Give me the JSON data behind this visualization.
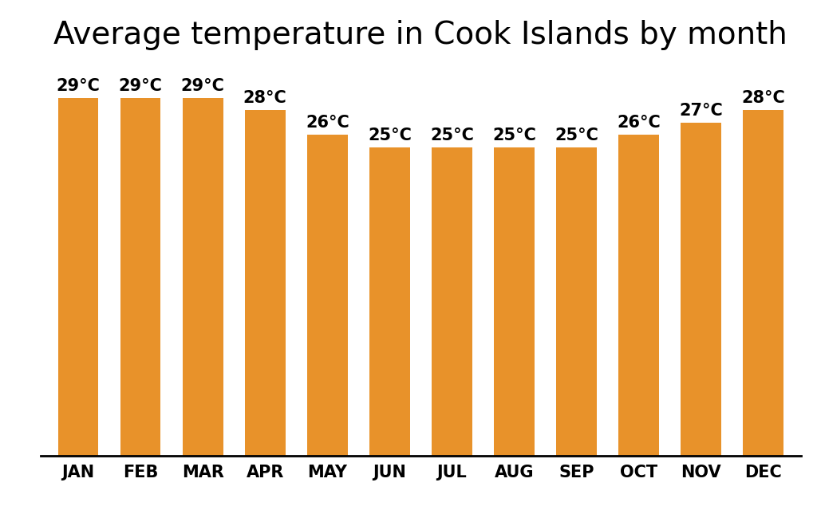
{
  "title": "Average temperature in Cook Islands by month",
  "months": [
    "JAN",
    "FEB",
    "MAR",
    "APR",
    "MAY",
    "JUN",
    "JUL",
    "AUG",
    "SEP",
    "OCT",
    "NOV",
    "DEC"
  ],
  "temperatures": [
    29,
    29,
    29,
    28,
    26,
    25,
    25,
    25,
    25,
    26,
    27,
    28
  ],
  "labels": [
    "29°C",
    "29°C",
    "29°C",
    "28°C",
    "26°C",
    "25°C",
    "25°C",
    "25°C",
    "25°C",
    "26°C",
    "27°C",
    "28°C"
  ],
  "bar_color": "#E8922A",
  "background_color": "#ffffff",
  "title_fontsize": 28,
  "label_fontsize": 15,
  "tick_fontsize": 15,
  "ylim_min": 0,
  "ylim_max": 32
}
